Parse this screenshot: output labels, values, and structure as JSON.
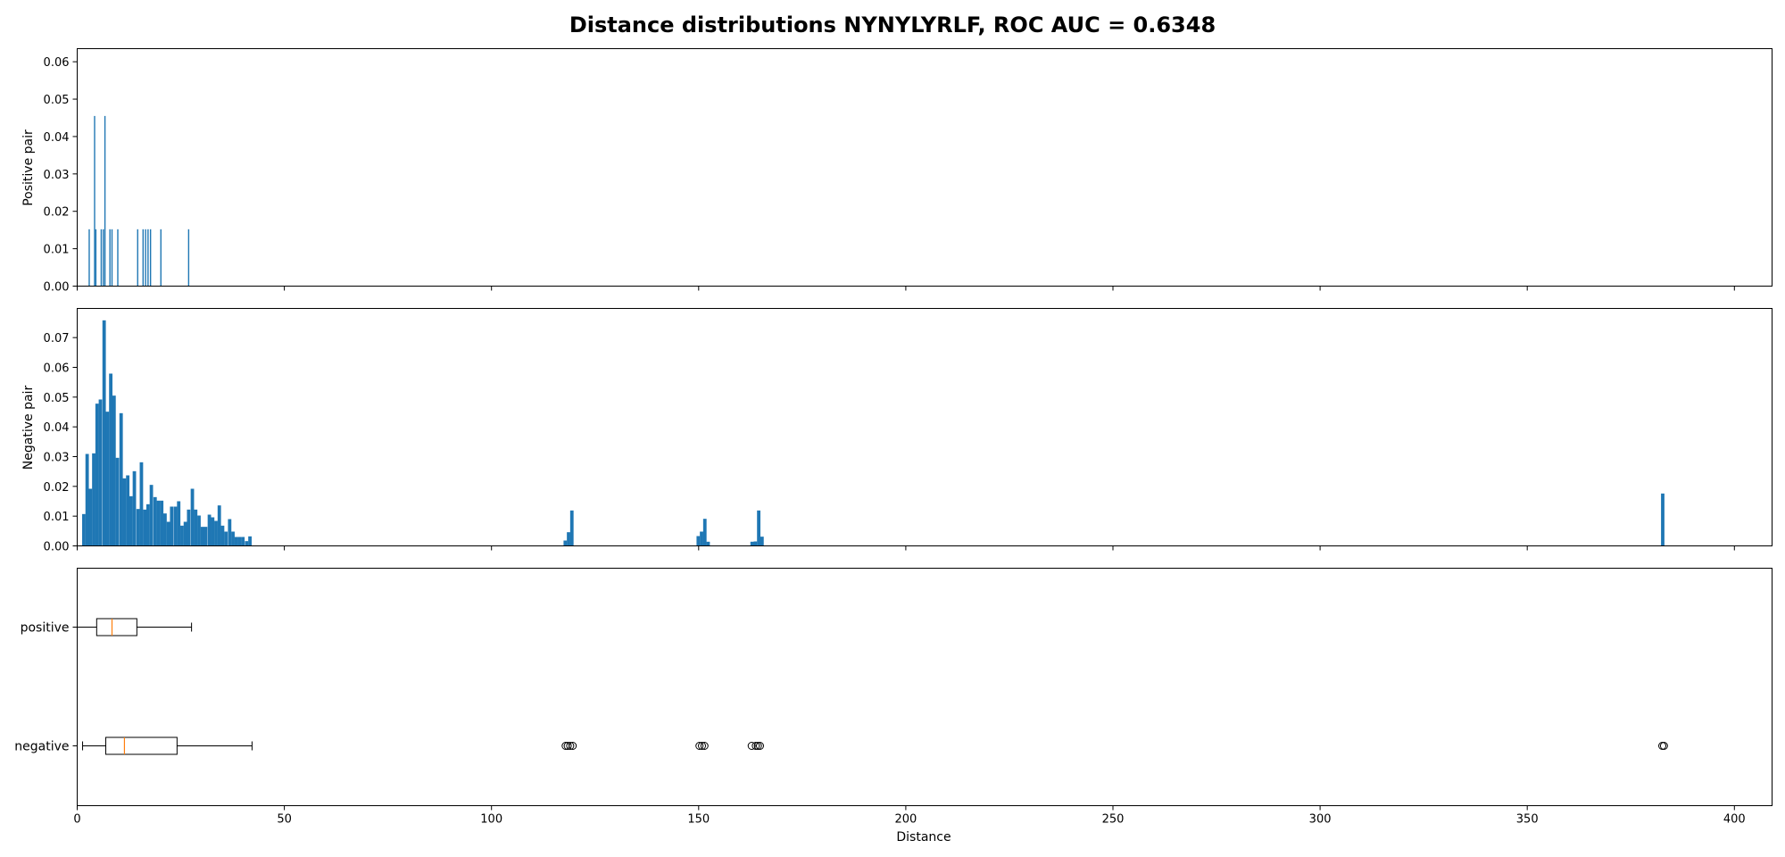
{
  "chart_data": {
    "title": "Distance distributions NYNYLYRLF, ROC AUC = 0.6348",
    "xlabel": "Distance",
    "xlim": [
      0,
      450
    ],
    "xticks": [
      0,
      50,
      100,
      150,
      200,
      250,
      300,
      350,
      400
    ],
    "colors": {
      "bars": "#1f77b4",
      "median": "#ff7f0e",
      "box": "#000000"
    },
    "panels": [
      {
        "type": "bar",
        "name": "positive-hist",
        "ylabel": "Positive pair",
        "ylim": [
          0,
          0.0635
        ],
        "yticks": [
          0.0,
          0.01,
          0.02,
          0.03,
          0.04,
          0.05,
          0.06
        ],
        "bin_width": 0.3,
        "bars": [
          [
            2.9,
            0.0152
          ],
          [
            4.2,
            0.0455
          ],
          [
            4.5,
            0.0152
          ],
          [
            5.8,
            0.0152
          ],
          [
            6.3,
            0.0152
          ],
          [
            6.7,
            0.0455
          ],
          [
            7.9,
            0.0152
          ],
          [
            8.4,
            0.0152
          ],
          [
            9.8,
            0.0152
          ],
          [
            14.6,
            0.0152
          ],
          [
            15.9,
            0.0152
          ],
          [
            16.5,
            0.0152
          ],
          [
            17.1,
            0.0152
          ],
          [
            17.7,
            0.0152
          ],
          [
            20.2,
            0.0152
          ],
          [
            26.9,
            0.0152
          ]
        ]
      },
      {
        "type": "bar",
        "name": "negative-hist",
        "ylabel": "Negative pair",
        "ylim": [
          0,
          0.0798
        ],
        "yticks": [
          0.0,
          0.01,
          0.02,
          0.03,
          0.04,
          0.05,
          0.06,
          0.07
        ],
        "bin_width": 0.82,
        "bars": [
          [
            1.6,
            0.0107
          ],
          [
            2.4,
            0.0309
          ],
          [
            3.2,
            0.0192
          ],
          [
            4.0,
            0.0311
          ],
          [
            4.8,
            0.0478
          ],
          [
            5.6,
            0.0492
          ],
          [
            6.5,
            0.0758
          ],
          [
            7.3,
            0.0451
          ],
          [
            8.1,
            0.0579
          ],
          [
            8.9,
            0.0505
          ],
          [
            9.7,
            0.0296
          ],
          [
            10.6,
            0.0446
          ],
          [
            11.4,
            0.0227
          ],
          [
            12.2,
            0.0237
          ],
          [
            13.0,
            0.0167
          ],
          [
            13.8,
            0.0251
          ],
          [
            14.7,
            0.0124
          ],
          [
            15.5,
            0.0281
          ],
          [
            16.3,
            0.0122
          ],
          [
            17.1,
            0.014
          ],
          [
            17.9,
            0.0205
          ],
          [
            18.8,
            0.0164
          ],
          [
            19.6,
            0.0152
          ],
          [
            20.4,
            0.0152
          ],
          [
            21.2,
            0.0109
          ],
          [
            22.0,
            0.0081
          ],
          [
            22.8,
            0.0132
          ],
          [
            23.7,
            0.0132
          ],
          [
            24.5,
            0.015
          ],
          [
            25.3,
            0.0068
          ],
          [
            26.1,
            0.0081
          ],
          [
            26.9,
            0.0122
          ],
          [
            27.8,
            0.0192
          ],
          [
            28.6,
            0.0122
          ],
          [
            29.4,
            0.0102
          ],
          [
            30.2,
            0.0064
          ],
          [
            31.0,
            0.0064
          ],
          [
            31.9,
            0.0105
          ],
          [
            32.7,
            0.0096
          ],
          [
            33.5,
            0.0084
          ],
          [
            34.3,
            0.0136
          ],
          [
            35.1,
            0.0068
          ],
          [
            35.9,
            0.0048
          ],
          [
            36.8,
            0.009
          ],
          [
            37.6,
            0.0048
          ],
          [
            38.4,
            0.003
          ],
          [
            39.2,
            0.003
          ],
          [
            40.0,
            0.003
          ],
          [
            40.9,
            0.0016
          ],
          [
            41.7,
            0.0032
          ],
          [
            117.8,
            0.0018
          ],
          [
            118.6,
            0.0046
          ],
          [
            119.4,
            0.0119
          ],
          [
            149.9,
            0.0033
          ],
          [
            150.7,
            0.0048
          ],
          [
            151.5,
            0.0091
          ],
          [
            152.3,
            0.0014
          ],
          [
            162.9,
            0.0014
          ],
          [
            163.7,
            0.0015
          ],
          [
            164.5,
            0.0119
          ],
          [
            165.3,
            0.0031
          ],
          [
            382.7,
            0.0176
          ]
        ]
      },
      {
        "type": "boxplot",
        "name": "boxplot",
        "categories": [
          "positive",
          "negative"
        ],
        "boxes": [
          {
            "label": "positive",
            "whisker_low": 0,
            "q1": 4.7,
            "median": 8.4,
            "q3": 14.4,
            "whisker_high": 27.6,
            "outliers": []
          },
          {
            "label": "negative",
            "whisker_low": 1.3,
            "q1": 6.9,
            "median": 11.4,
            "q3": 24.1,
            "whisker_high": 42.2,
            "outliers": [
              117.9,
              118.4,
              119.0,
              119.6,
              150.2,
              150.8,
              151.4,
              162.8,
              163.8,
              164.3,
              164.8,
              382.6,
              383.0
            ]
          }
        ]
      }
    ]
  }
}
